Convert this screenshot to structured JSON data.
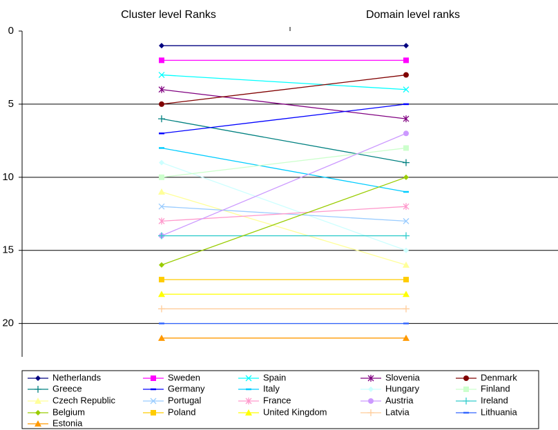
{
  "chart_data": {
    "type": "slope",
    "categories": [
      "Cluster level Ranks",
      "Domain level ranks"
    ],
    "ylim": [
      0,
      22
    ],
    "yticks": [
      0,
      5,
      10,
      15,
      20
    ],
    "inverted": true,
    "grid": true,
    "series": [
      {
        "name": "Netherlands",
        "color": "#000080",
        "marker": "diamond",
        "values": [
          1,
          1
        ]
      },
      {
        "name": "Sweden",
        "color": "#FF00FF",
        "marker": "square",
        "values": [
          2,
          2
        ]
      },
      {
        "name": "Spain",
        "color": "#00FFFF",
        "marker": "x",
        "values": [
          3,
          4
        ]
      },
      {
        "name": "Slovenia",
        "color": "#800080",
        "marker": "star",
        "values": [
          4,
          6
        ]
      },
      {
        "name": "Denmark",
        "color": "#800000",
        "marker": "circle",
        "values": [
          5,
          3
        ]
      },
      {
        "name": "Greece",
        "color": "#008080",
        "marker": "plus",
        "values": [
          6,
          9
        ]
      },
      {
        "name": "Germany",
        "color": "#0000FF",
        "marker": "dash",
        "values": [
          7,
          5
        ]
      },
      {
        "name": "Italy",
        "color": "#00CCFF",
        "marker": "dash",
        "values": [
          8,
          11
        ]
      },
      {
        "name": "Hungary",
        "color": "#CCFFFF",
        "marker": "diamond",
        "values": [
          9,
          15
        ]
      },
      {
        "name": "Finland",
        "color": "#CCFFCC",
        "marker": "square",
        "values": [
          10,
          8
        ]
      },
      {
        "name": "Czech Republic",
        "color": "#FFFF99",
        "marker": "triangle",
        "values": [
          11,
          16
        ]
      },
      {
        "name": "Portugal",
        "color": "#99CCFF",
        "marker": "x",
        "values": [
          12,
          13
        ]
      },
      {
        "name": "France",
        "color": "#FF99CC",
        "marker": "star",
        "values": [
          13,
          12
        ]
      },
      {
        "name": "Austria",
        "color": "#CC99FF",
        "marker": "circle",
        "values": [
          14,
          7
        ]
      },
      {
        "name": "Ireland",
        "color": "#33CCCC",
        "marker": "plus",
        "values": [
          14,
          14
        ]
      },
      {
        "name": "Belgium",
        "color": "#99CC00",
        "marker": "diamond",
        "values": [
          16,
          10
        ]
      },
      {
        "name": "Poland",
        "color": "#FFCC00",
        "marker": "square",
        "values": [
          17,
          17
        ]
      },
      {
        "name": "United Kingdom",
        "color": "#FFFF00",
        "marker": "triangle",
        "values": [
          18,
          18
        ]
      },
      {
        "name": "Latvia",
        "color": "#FFCC99",
        "marker": "plus",
        "values": [
          19,
          19
        ]
      },
      {
        "name": "Lithuania",
        "color": "#3366FF",
        "marker": "dash",
        "values": [
          20,
          20
        ]
      },
      {
        "name": "Estonia",
        "color": "#FF9900",
        "marker": "triangle",
        "values": [
          21,
          21
        ]
      }
    ]
  }
}
